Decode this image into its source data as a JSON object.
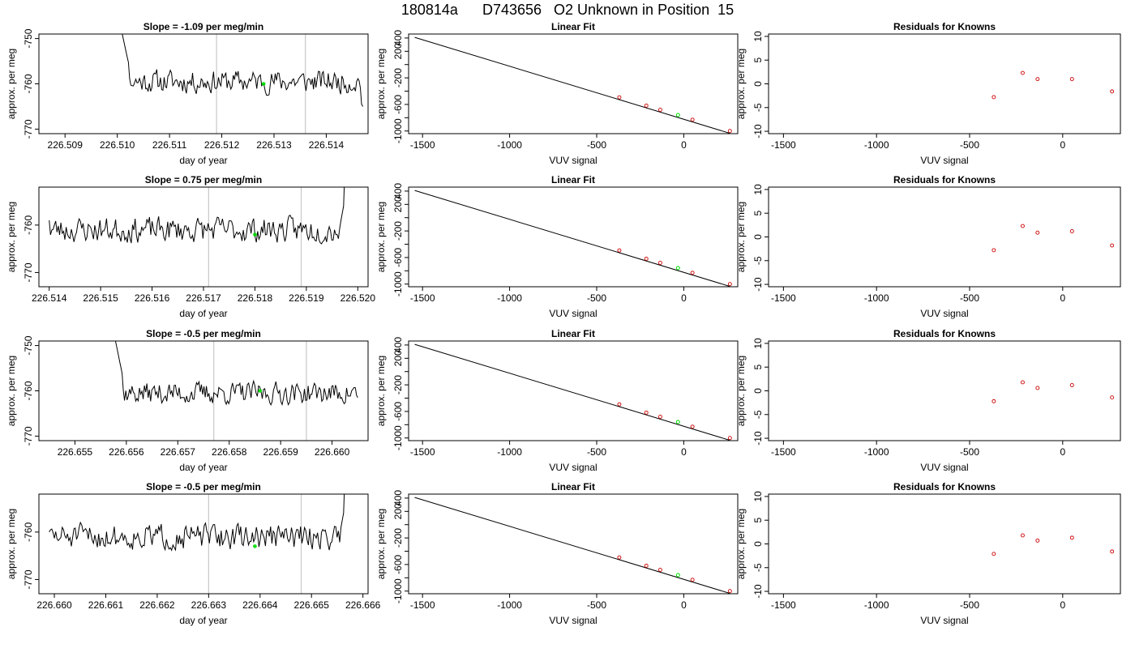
{
  "figure_title": "180814a      D743656   O2 Unknown in Position  15",
  "colors": {
    "trace": "#000000",
    "marker_green": "#00dd00",
    "knowns_red": "#cc0000",
    "vline_gray": "#c8c8c8",
    "fit_line": "#000000"
  },
  "chart_data": [
    {
      "type": "line",
      "panel": "row1-time",
      "title": "Slope =  -1.09  per meg/min",
      "xlabel": "day of year",
      "ylabel": "approx. per meg",
      "xlim": [
        226.5085,
        226.5148
      ],
      "ylim": [
        -771,
        -749
      ],
      "xticks": [
        "226.509",
        "226.510",
        "226.511",
        "226.512",
        "226.513",
        "226.514"
      ],
      "xtick_values": [
        226.509,
        226.51,
        226.511,
        226.512,
        226.513,
        226.514
      ],
      "yticks": [
        "-770",
        "-760",
        "-750"
      ],
      "ytick_values": [
        -770,
        -760,
        -750
      ],
      "vlines": [
        226.5119,
        226.5136
      ],
      "green_point": {
        "x": 226.5128,
        "y": -760
      },
      "trace": {
        "x_start": 226.51,
        "x_end": 226.5147,
        "n": 200,
        "mean": -759.5,
        "amp": 2.3,
        "seed": 11,
        "spike_at": "start",
        "end_value": -765
      }
    },
    {
      "type": "line",
      "panel": "row1-fit",
      "title": "Linear Fit",
      "xlabel": "VUV signal",
      "ylabel": "approx. per meg",
      "xlim": [
        -1580,
        310
      ],
      "ylim": [
        -1040,
        460
      ],
      "xticks": [
        "-1500",
        "-1000",
        "-500",
        "0"
      ],
      "xtick_values": [
        -1500,
        -1000,
        -500,
        0
      ],
      "yticks": [
        "-1000",
        "-600",
        "-200",
        "200",
        "400"
      ],
      "ytick_values": [
        -1000,
        -600,
        -200,
        200,
        400
      ],
      "yticks_unlabeled": [
        -800,
        -400,
        0
      ],
      "fit_line": {
        "x": [
          -1545,
          265
        ],
        "y": [
          410,
          -1035
        ]
      },
      "knowns": {
        "x": [
          -370,
          -215,
          -135,
          50,
          265
        ],
        "y": [
          -493,
          -618,
          -680,
          -830,
          -1000
        ]
      },
      "unknown": {
        "x": -33,
        "y": -760
      }
    },
    {
      "type": "scatter",
      "panel": "row1-resid",
      "title": "Residuals for Knowns",
      "xlabel": "VUV signal",
      "ylabel": "approx. per meg",
      "xlim": [
        -1580,
        310
      ],
      "ylim": [
        -10.5,
        10.5
      ],
      "xticks": [
        "-1500",
        "-1000",
        "-500",
        "0"
      ],
      "xtick_values": [
        -1500,
        -1000,
        -500,
        0
      ],
      "yticks": [
        "-10",
        "-5",
        "0",
        "5",
        "10"
      ],
      "ytick_values": [
        -10,
        -5,
        0,
        5,
        10
      ],
      "points": {
        "x": [
          -370,
          -215,
          -135,
          50,
          265
        ],
        "y": [
          -2.8,
          2.3,
          1.0,
          1.0,
          -1.6
        ]
      }
    },
    {
      "type": "line",
      "panel": "row2-time",
      "title": "Slope =  0.75  per meg/min",
      "xlabel": "day of year",
      "ylabel": "approx. per meg",
      "xlim": [
        226.5138,
        226.5202
      ],
      "ylim": [
        -773,
        -752
      ],
      "xticks": [
        "226.514",
        "226.515",
        "226.516",
        "226.517",
        "226.518",
        "226.519",
        "226.520"
      ],
      "xtick_values": [
        226.514,
        226.515,
        226.516,
        226.517,
        226.518,
        226.519,
        226.52
      ],
      "yticks": [
        "-770",
        "-760"
      ],
      "ytick_values": [
        -770,
        -760
      ],
      "vlines": [
        226.5171,
        226.5189
      ],
      "green_point": {
        "x": 226.518,
        "y": -762
      },
      "trace": {
        "x_start": 226.514,
        "x_end": 226.5198,
        "n": 230,
        "mean": -761,
        "amp": 2.4,
        "seed": 23,
        "spike_at": "end",
        "start_value": -759
      }
    },
    {
      "type": "line",
      "panel": "row2-fit",
      "title": "Linear Fit",
      "xlabel": "VUV signal",
      "ylabel": "approx. per meg",
      "xlim": [
        -1580,
        310
      ],
      "ylim": [
        -1040,
        460
      ],
      "xticks": [
        "-1500",
        "-1000",
        "-500",
        "0"
      ],
      "xtick_values": [
        -1500,
        -1000,
        -500,
        0
      ],
      "yticks": [
        "-1000",
        "-600",
        "-200",
        "200",
        "400"
      ],
      "ytick_values": [
        -1000,
        -600,
        -200,
        200,
        400
      ],
      "yticks_unlabeled": [
        -800,
        -400,
        0
      ],
      "fit_line": {
        "x": [
          -1545,
          265
        ],
        "y": [
          410,
          -1035
        ]
      },
      "knowns": {
        "x": [
          -370,
          -215,
          -135,
          50,
          265
        ],
        "y": [
          -493,
          -618,
          -680,
          -830,
          -1000
        ]
      },
      "unknown": {
        "x": -33,
        "y": -760
      }
    },
    {
      "type": "scatter",
      "panel": "row2-resid",
      "title": "Residuals for Knowns",
      "xlabel": "VUV signal",
      "ylabel": "approx. per meg",
      "xlim": [
        -1580,
        310
      ],
      "ylim": [
        -10.5,
        10.5
      ],
      "xticks": [
        "-1500",
        "-1000",
        "-500",
        "0"
      ],
      "xtick_values": [
        -1500,
        -1000,
        -500,
        0
      ],
      "yticks": [
        "-10",
        "-5",
        "0",
        "5",
        "10"
      ],
      "ytick_values": [
        -10,
        -5,
        0,
        5,
        10
      ],
      "points": {
        "x": [
          -370,
          -215,
          -135,
          50,
          265
        ],
        "y": [
          -2.8,
          2.3,
          0.9,
          1.2,
          -1.8
        ]
      }
    },
    {
      "type": "line",
      "panel": "row3-time",
      "title": "Slope =  -0.5  per meg/min",
      "xlabel": "day of year",
      "ylabel": "approx. per meg",
      "xlim": [
        226.6543,
        226.6607
      ],
      "ylim": [
        -771,
        -749
      ],
      "xticks": [
        "226.655",
        "226.656",
        "226.657",
        "226.658",
        "226.659",
        "226.660"
      ],
      "xtick_values": [
        226.655,
        226.656,
        226.657,
        226.658,
        226.659,
        226.66
      ],
      "yticks": [
        "-770",
        "-760",
        "-750"
      ],
      "ytick_values": [
        -770,
        -760,
        -750
      ],
      "vlines": [
        226.6577,
        226.6595
      ],
      "green_point": {
        "x": 226.6586,
        "y": -760
      },
      "trace": {
        "x_start": 226.6557,
        "x_end": 226.6605,
        "n": 200,
        "mean": -760.5,
        "amp": 2.2,
        "seed": 37,
        "spike_at": "start",
        "end_value": -761.5
      }
    },
    {
      "type": "line",
      "panel": "row3-fit",
      "title": "Linear Fit",
      "xlabel": "VUV signal",
      "ylabel": "approx. per meg",
      "xlim": [
        -1580,
        310
      ],
      "ylim": [
        -1040,
        460
      ],
      "xticks": [
        "-1500",
        "-1000",
        "-500",
        "0"
      ],
      "xtick_values": [
        -1500,
        -1000,
        -500,
        0
      ],
      "yticks": [
        "-1000",
        "-600",
        "-200",
        "200",
        "400"
      ],
      "ytick_values": [
        -1000,
        -600,
        -200,
        200,
        400
      ],
      "yticks_unlabeled": [
        -800,
        -400,
        0
      ],
      "fit_line": {
        "x": [
          -1545,
          265
        ],
        "y": [
          410,
          -1035
        ]
      },
      "knowns": {
        "x": [
          -370,
          -215,
          -135,
          50,
          265
        ],
        "y": [
          -493,
          -618,
          -680,
          -830,
          -1000
        ]
      },
      "unknown": {
        "x": -33,
        "y": -760
      }
    },
    {
      "type": "scatter",
      "panel": "row3-resid",
      "title": "Residuals for Knowns",
      "xlabel": "VUV signal",
      "ylabel": "approx. per meg",
      "xlim": [
        -1580,
        310
      ],
      "ylim": [
        -10.5,
        10.5
      ],
      "xticks": [
        "-1500",
        "-1000",
        "-500",
        "0"
      ],
      "xtick_values": [
        -1500,
        -1000,
        -500,
        0
      ],
      "yticks": [
        "-10",
        "-5",
        "0",
        "5",
        "10"
      ],
      "ytick_values": [
        -10,
        -5,
        0,
        5,
        10
      ],
      "points": {
        "x": [
          -370,
          -215,
          -135,
          50,
          265
        ],
        "y": [
          -2.2,
          1.8,
          0.6,
          1.2,
          -1.4
        ]
      }
    },
    {
      "type": "line",
      "panel": "row4-time",
      "title": "Slope =  -0.5  per meg/min",
      "xlabel": "day of year",
      "ylabel": "approx. per meg",
      "xlim": [
        226.6597,
        226.6661
      ],
      "ylim": [
        -773,
        -752
      ],
      "xticks": [
        "226.660",
        "226.661",
        "226.662",
        "226.663",
        "226.664",
        "226.665",
        "226.666"
      ],
      "xtick_values": [
        226.66,
        226.661,
        226.662,
        226.663,
        226.664,
        226.665,
        226.666
      ],
      "yticks": [
        "-770",
        "-760"
      ],
      "ytick_values": [
        -770,
        -760
      ],
      "vlines": [
        226.663,
        226.6648
      ],
      "green_point": {
        "x": 226.6639,
        "y": -763
      },
      "trace": {
        "x_start": 226.6599,
        "x_end": 226.6657,
        "n": 230,
        "mean": -761,
        "amp": 2.4,
        "seed": 51,
        "spike_at": "end",
        "start_value": -760
      }
    },
    {
      "type": "line",
      "panel": "row4-fit",
      "title": "Linear Fit",
      "xlabel": "VUV signal",
      "ylabel": "approx. per meg",
      "xlim": [
        -1580,
        310
      ],
      "ylim": [
        -1040,
        460
      ],
      "xticks": [
        "-1500",
        "-1000",
        "-500",
        "0"
      ],
      "xtick_values": [
        -1500,
        -1000,
        -500,
        0
      ],
      "yticks": [
        "-1000",
        "-600",
        "-200",
        "200",
        "400"
      ],
      "ytick_values": [
        -1000,
        -600,
        -200,
        200,
        400
      ],
      "yticks_unlabeled": [
        -800,
        -400,
        0
      ],
      "fit_line": {
        "x": [
          -1545,
          265
        ],
        "y": [
          410,
          -1035
        ]
      },
      "knowns": {
        "x": [
          -370,
          -215,
          -135,
          50,
          265
        ],
        "y": [
          -493,
          -618,
          -680,
          -830,
          -1000
        ]
      },
      "unknown": {
        "x": -33,
        "y": -760
      }
    },
    {
      "type": "scatter",
      "panel": "row4-resid",
      "title": "Residuals for Knowns",
      "xlabel": "VUV signal",
      "ylabel": "approx. per meg",
      "xlim": [
        -1580,
        310
      ],
      "ylim": [
        -10.5,
        10.5
      ],
      "xticks": [
        "-1500",
        "-1000",
        "-500",
        "0"
      ],
      "xtick_values": [
        -1500,
        -1000,
        -500,
        0
      ],
      "yticks": [
        "-10",
        "-5",
        "0",
        "5",
        "10"
      ],
      "ytick_values": [
        -10,
        -5,
        0,
        5,
        10
      ],
      "points": {
        "x": [
          -370,
          -215,
          -135,
          50,
          265
        ],
        "y": [
          -2.1,
          1.8,
          0.7,
          1.3,
          -1.6
        ]
      }
    }
  ]
}
